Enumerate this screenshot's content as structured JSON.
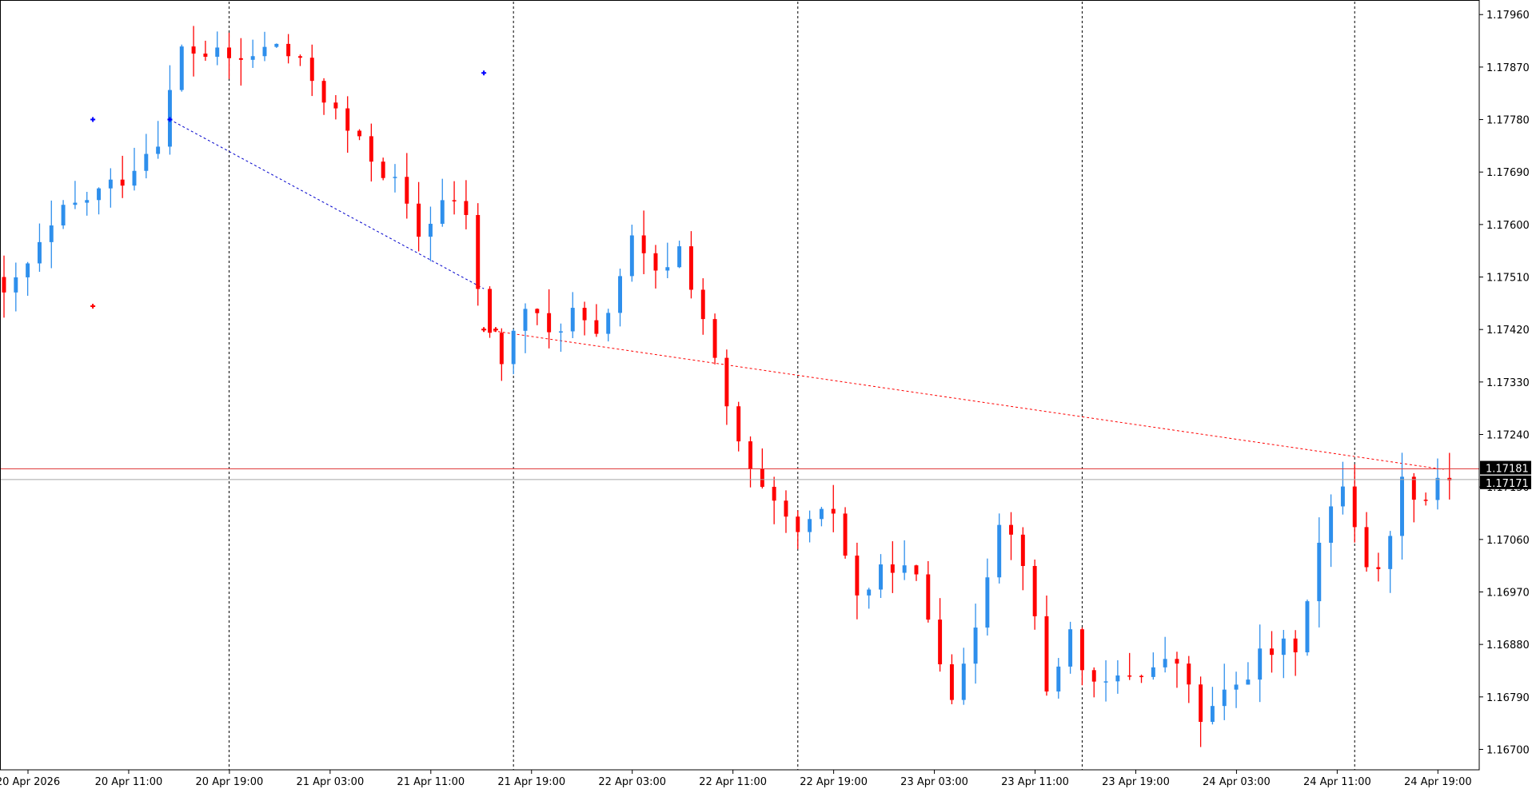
{
  "chart_data": {
    "type": "candlestick",
    "symbol_precision": 5,
    "y_ticks": [
      "1.17960",
      "1.17870",
      "1.17780",
      "1.17690",
      "1.17600",
      "1.17510",
      "1.17420",
      "1.17330",
      "1.17240",
      "1.17150",
      "1.17060",
      "1.16970",
      "1.16880",
      "1.16790",
      "1.16700"
    ],
    "x_labels": [
      "20 Apr 2026",
      "20 Apr 11:00",
      "20 Apr 19:00",
      "21 Apr 03:00",
      "21 Apr 11:00",
      "21 Apr 19:00",
      "22 Apr 03:00",
      "22 Apr 11:00",
      "22 Apr 19:00",
      "23 Apr 03:00",
      "23 Apr 11:00",
      "23 Apr 19:00",
      "24 Apr 03:00",
      "24 Apr 11:00",
      "24 Apr 19:00"
    ],
    "bid_price_label": "1.17181",
    "ask_price_label": "1.17171",
    "bid_price": 1.17181,
    "ask_price": 1.17171,
    "colors": {
      "bull": "#2e8fec",
      "bear": "#ff0000",
      "bid_line": "#e03c3c",
      "ask_line": "#a6a6a6",
      "label_bg": "#000000"
    },
    "grid": false,
    "session_separators_hours": [
      19,
      43,
      67,
      91,
      114
    ],
    "key_closes": [
      {
        "h": 0,
        "c": 1.1747
      },
      {
        "h": 5,
        "c": 1.1762
      },
      {
        "h": 10,
        "c": 1.1768
      },
      {
        "h": 13,
        "c": 1.1775
      },
      {
        "h": 15,
        "c": 1.179
      },
      {
        "h": 20,
        "c": 1.1788
      },
      {
        "h": 23,
        "c": 1.1791
      },
      {
        "h": 26,
        "c": 1.1785
      },
      {
        "h": 29,
        "c": 1.1776
      },
      {
        "h": 33,
        "c": 1.1767
      },
      {
        "h": 35,
        "c": 1.1758
      },
      {
        "h": 37,
        "c": 1.1764
      },
      {
        "h": 39,
        "c": 1.1762
      },
      {
        "h": 40,
        "c": 1.1748
      },
      {
        "h": 42,
        "c": 1.1736
      },
      {
        "h": 44,
        "c": 1.1746
      },
      {
        "h": 46,
        "c": 1.1741
      },
      {
        "h": 48,
        "c": 1.1745
      },
      {
        "h": 50,
        "c": 1.174
      },
      {
        "h": 53,
        "c": 1.1757
      },
      {
        "h": 55,
        "c": 1.1751
      },
      {
        "h": 57,
        "c": 1.1756
      },
      {
        "h": 59,
        "c": 1.1744
      },
      {
        "h": 61,
        "c": 1.1728
      },
      {
        "h": 63,
        "c": 1.1717
      },
      {
        "h": 65,
        "c": 1.1711
      },
      {
        "h": 67,
        "c": 1.1707
      },
      {
        "h": 70,
        "c": 1.1711
      },
      {
        "h": 72,
        "c": 1.1696
      },
      {
        "h": 75,
        "c": 1.1702
      },
      {
        "h": 77,
        "c": 1.1699
      },
      {
        "h": 80,
        "c": 1.168
      },
      {
        "h": 81,
        "c": 1.1683
      },
      {
        "h": 84,
        "c": 1.171
      },
      {
        "h": 86,
        "c": 1.1703
      },
      {
        "h": 88,
        "c": 1.168
      },
      {
        "h": 90,
        "c": 1.169
      },
      {
        "h": 92,
        "c": 1.168
      },
      {
        "h": 95,
        "c": 1.1683
      },
      {
        "h": 99,
        "c": 1.1685
      },
      {
        "h": 101,
        "c": 1.1675
      },
      {
        "h": 104,
        "c": 1.1681
      },
      {
        "h": 106,
        "c": 1.1686
      },
      {
        "h": 109,
        "c": 1.1688
      },
      {
        "h": 111,
        "c": 1.1705
      },
      {
        "h": 113,
        "c": 1.1716
      },
      {
        "h": 115,
        "c": 1.1702
      },
      {
        "h": 116,
        "c": 1.17
      },
      {
        "h": 118,
        "c": 1.1716
      },
      {
        "h": 120,
        "c": 1.1713
      },
      {
        "h": 121,
        "c": 1.1717
      }
    ],
    "trend_lines": [
      {
        "color": "#0000cc",
        "from": {
          "h": 14,
          "p": 1.1778
        },
        "to": {
          "h": 40.5,
          "p": 1.1749
        }
      },
      {
        "color": "#ff0000",
        "from": {
          "h": 40.5,
          "p": 1.1742
        },
        "to": {
          "h": 121.5,
          "p": 1.1718
        }
      }
    ],
    "markers": [
      {
        "h": 7.5,
        "p": 1.1778,
        "color": "#0000ff"
      },
      {
        "h": 7.5,
        "p": 1.1746,
        "color": "#ff0000"
      },
      {
        "h": 40.5,
        "p": 1.1786,
        "color": "#0000ff"
      },
      {
        "h": 14,
        "p": 1.1778,
        "color": "#0000ff"
      },
      {
        "h": 40.5,
        "p": 1.1742,
        "color": "#ff0000"
      },
      {
        "h": 41.5,
        "p": 1.1742,
        "color": "#ff0000"
      }
    ]
  }
}
